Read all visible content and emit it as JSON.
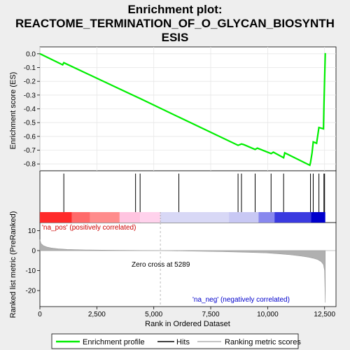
{
  "title_lines": [
    "Enrichment plot:",
    "REACTOME_TERMINATION_OF_O_GLYCAN_BIOSYNTH",
    "ESIS"
  ],
  "colors": {
    "es_line": "#00ee00",
    "hit": "#000000",
    "pos_region": "#ff0000",
    "neg_region": "#0000ff",
    "metric_fill": "#b0b0b0",
    "zero_line": "#aaaaaa",
    "pos_label": "#cc0000",
    "neg_label": "#0000cc"
  },
  "chart_data": {
    "type": "line",
    "x_label": "Rank in Ordered Dataset",
    "x_range": [
      0,
      13000
    ],
    "x_ticks": [
      "0",
      "2,500",
      "5,000",
      "7,500",
      "10,000",
      "12,500"
    ],
    "x_tick_values": [
      0,
      2500,
      5000,
      7500,
      10000,
      12500
    ],
    "es_panel": {
      "y_label": "Enrichment score (ES)",
      "y_range": [
        -0.85,
        0.05
      ],
      "y_ticks": [
        "0.0",
        "-0.1",
        "-0.2",
        "-0.3",
        "-0.4",
        "-0.5",
        "-0.6",
        "-0.7",
        "-0.8"
      ],
      "y_tick_values": [
        0.0,
        -0.1,
        -0.2,
        -0.3,
        -0.4,
        -0.5,
        -0.6,
        -0.7,
        -0.8
      ],
      "x": [
        0,
        1000,
        1050,
        4200,
        4400,
        6100,
        8700,
        8850,
        8950,
        9450,
        9550,
        10150,
        10250,
        10700,
        10750,
        11850,
        11880,
        11950,
        12000,
        12150,
        12250,
        12450,
        12470,
        12500,
        12530
      ],
      "y": [
        0.0,
        -0.08,
        -0.065,
        -0.31,
        -0.325,
        -0.46,
        -0.665,
        -0.655,
        -0.66,
        -0.695,
        -0.685,
        -0.725,
        -0.715,
        -0.755,
        -0.72,
        -0.81,
        -0.79,
        -0.72,
        -0.64,
        -0.65,
        -0.535,
        -0.545,
        -0.375,
        -0.19,
        0.005
      ]
    },
    "hits": [
      1050,
      4200,
      4400,
      6100,
      8700,
      8850,
      9450,
      10150,
      10700,
      11880,
      12000,
      12250,
      12470,
      12500
    ],
    "rank_panel": {
      "y_label": "Ranked list metric (PreRanked)",
      "y_range": [
        -28,
        14
      ],
      "y_ticks": [
        "10",
        "0",
        "-10",
        "-20"
      ],
      "y_tick_values": [
        10,
        0,
        -10,
        -20
      ],
      "metric_x": [
        0,
        50,
        150,
        300,
        500,
        800,
        1200,
        2000,
        3000,
        4000,
        5289,
        6500,
        8000,
        9000,
        10000,
        10500,
        11000,
        11500,
        11800,
        12000,
        12200,
        12350,
        12450,
        12500,
        12530
      ],
      "metric_y": [
        5.5,
        3.5,
        2.5,
        1.8,
        1.3,
        0.9,
        0.6,
        0.35,
        0.2,
        0.1,
        0.0,
        -0.2,
        -0.5,
        -0.8,
        -1.2,
        -1.6,
        -2.1,
        -2.8,
        -3.3,
        -3.8,
        -4.5,
        -5.5,
        -7,
        -10,
        -26
      ],
      "pos_label": "'na_pos' (positively correlated)",
      "neg_label": "'na_neg' (negatively correlated)",
      "zero_cross_label": "Zero cross at 5289",
      "zero_cross": 5289
    },
    "legend": [
      "Enrichment profile",
      "Hits",
      "Ranking metric scores"
    ],
    "legend_position": "bottom"
  }
}
